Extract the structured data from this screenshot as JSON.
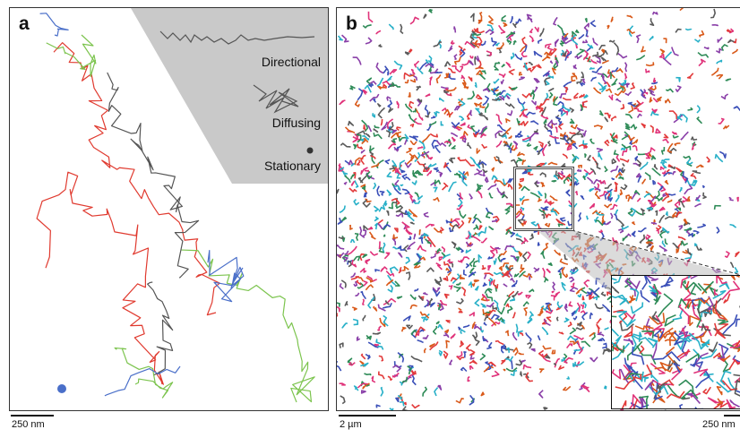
{
  "panel_a": {
    "letter": "a",
    "legend": {
      "directional": "Directional",
      "diffusing": "Diffusing",
      "stationary": "Stationary"
    },
    "scalebar_label": "250 nm",
    "colors": {
      "red": "#e03a2f",
      "gray": "#555555",
      "green": "#7cc44e",
      "blue": "#4a6fc9",
      "legend_bg": "#c9c9c9"
    }
  },
  "panel_b": {
    "letter": "b",
    "scalebar_label": "2 µm",
    "inset_scalebar_label": "250 nm",
    "colors": [
      "#e23a3a",
      "#2e8b57",
      "#3a4fb8",
      "#e0337a",
      "#28b0c8",
      "#8a3fa8",
      "#5a5a5a",
      "#d95a1a"
    ]
  }
}
